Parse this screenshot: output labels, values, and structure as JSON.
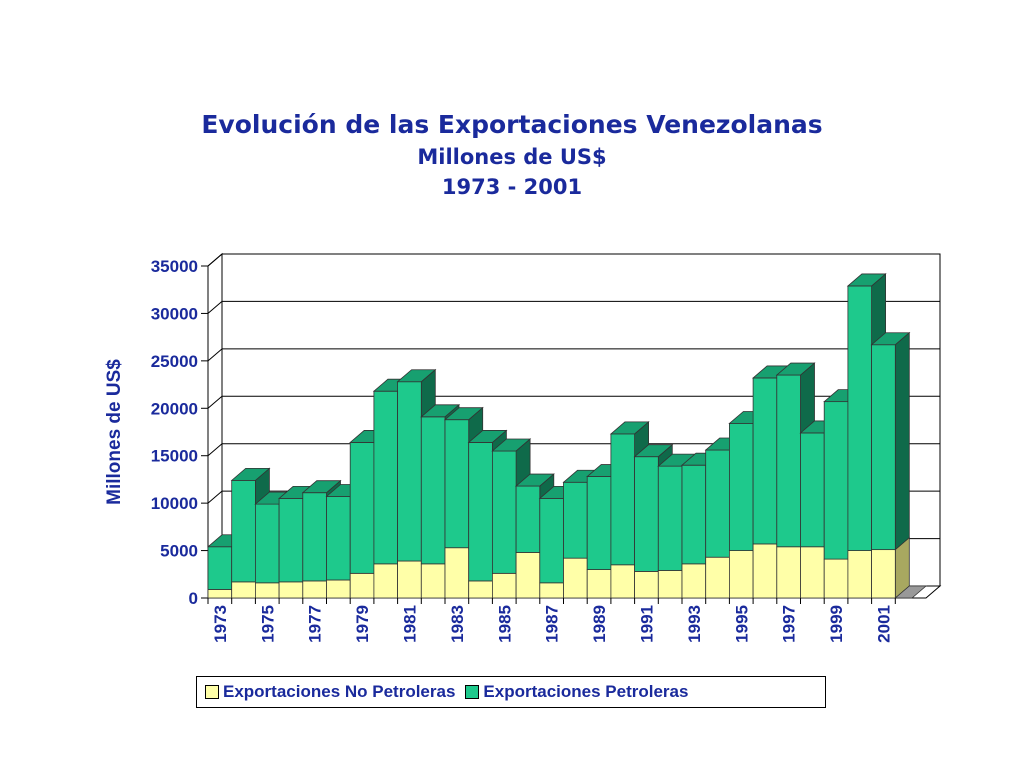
{
  "colors": {
    "title": "#1a2a9c",
    "no_petroleras": "#ffffa8",
    "petroleras": "#1ec98c",
    "petroleras_side": "#0f6a4a",
    "petroleras_top": "#17a070"
  },
  "chart_data": {
    "type": "bar",
    "stacked": true,
    "three_d": true,
    "title": "Evolución de las Exportaciones Venezolanas",
    "subtitle": "Millones de US$",
    "subtitle2": "1973 - 2001",
    "xlabel": "",
    "ylabel": "Millones de US$",
    "ylim": [
      0,
      35000
    ],
    "yticks": [
      0,
      5000,
      10000,
      15000,
      20000,
      25000,
      30000,
      35000
    ],
    "categories": [
      "1973",
      "1974",
      "1975",
      "1976",
      "1977",
      "1978",
      "1979",
      "1980",
      "1981",
      "1982",
      "1983",
      "1984",
      "1985",
      "1986",
      "1987",
      "1988",
      "1989",
      "1990",
      "1991",
      "1992",
      "1993",
      "1994",
      "1995",
      "1996",
      "1997",
      "1998",
      "1999",
      "2000",
      "2001"
    ],
    "x_tick_labels": [
      "1973",
      "1975",
      "1977",
      "1979",
      "1981",
      "1983",
      "1985",
      "1987",
      "1989",
      "1991",
      "1993",
      "1995",
      "1997",
      "1999",
      "2001"
    ],
    "legend_position": "bottom",
    "grid": true,
    "series": [
      {
        "name": "Exportaciones No Petroleras",
        "values": [
          900,
          1700,
          1600,
          1700,
          1800,
          1900,
          2600,
          3600,
          3900,
          3600,
          5300,
          1800,
          2600,
          4800,
          1600,
          4200,
          3000,
          3500,
          2800,
          2900,
          3600,
          4300,
          5000,
          5700,
          5400,
          5400,
          4100,
          5000,
          5100
        ]
      },
      {
        "name": "Exportaciones Petroleras",
        "values": [
          4500,
          10700,
          8300,
          8800,
          9300,
          8800,
          13800,
          18200,
          18900,
          15500,
          13500,
          14600,
          12900,
          7000,
          8900,
          8000,
          9800,
          13800,
          12100,
          11000,
          10400,
          11300,
          13400,
          17500,
          18100,
          12000,
          16600,
          27900,
          21600
        ]
      }
    ]
  }
}
